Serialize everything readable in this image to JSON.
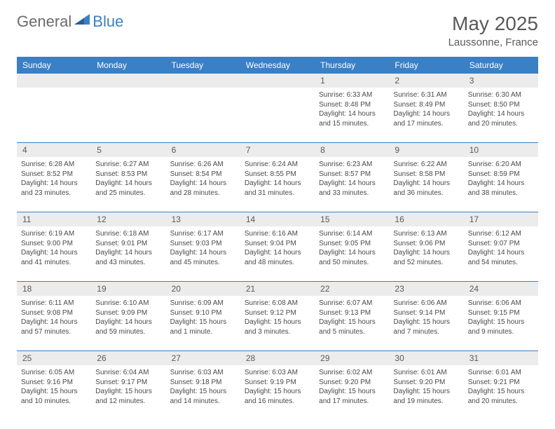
{
  "logo": {
    "text_gray": "General",
    "text_blue": "Blue"
  },
  "title": "May 2025",
  "location": "Laussonne, France",
  "colors": {
    "header_bg": "#3b7fc4",
    "header_text": "#ffffff",
    "daynum_bg": "#ececec",
    "divider": "#3b7fc4",
    "body_text": "#4a4a4a",
    "title_text": "#5a5a5a"
  },
  "day_names": [
    "Sunday",
    "Monday",
    "Tuesday",
    "Wednesday",
    "Thursday",
    "Friday",
    "Saturday"
  ],
  "weeks": [
    [
      {
        "n": "",
        "lines": [
          "",
          "",
          "",
          ""
        ]
      },
      {
        "n": "",
        "lines": [
          "",
          "",
          "",
          ""
        ]
      },
      {
        "n": "",
        "lines": [
          "",
          "",
          "",
          ""
        ]
      },
      {
        "n": "",
        "lines": [
          "",
          "",
          "",
          ""
        ]
      },
      {
        "n": "1",
        "lines": [
          "Sunrise: 6:33 AM",
          "Sunset: 8:48 PM",
          "Daylight: 14 hours",
          "and 15 minutes."
        ]
      },
      {
        "n": "2",
        "lines": [
          "Sunrise: 6:31 AM",
          "Sunset: 8:49 PM",
          "Daylight: 14 hours",
          "and 17 minutes."
        ]
      },
      {
        "n": "3",
        "lines": [
          "Sunrise: 6:30 AM",
          "Sunset: 8:50 PM",
          "Daylight: 14 hours",
          "and 20 minutes."
        ]
      }
    ],
    [
      {
        "n": "4",
        "lines": [
          "Sunrise: 6:28 AM",
          "Sunset: 8:52 PM",
          "Daylight: 14 hours",
          "and 23 minutes."
        ]
      },
      {
        "n": "5",
        "lines": [
          "Sunrise: 6:27 AM",
          "Sunset: 8:53 PM",
          "Daylight: 14 hours",
          "and 25 minutes."
        ]
      },
      {
        "n": "6",
        "lines": [
          "Sunrise: 6:26 AM",
          "Sunset: 8:54 PM",
          "Daylight: 14 hours",
          "and 28 minutes."
        ]
      },
      {
        "n": "7",
        "lines": [
          "Sunrise: 6:24 AM",
          "Sunset: 8:55 PM",
          "Daylight: 14 hours",
          "and 31 minutes."
        ]
      },
      {
        "n": "8",
        "lines": [
          "Sunrise: 6:23 AM",
          "Sunset: 8:57 PM",
          "Daylight: 14 hours",
          "and 33 minutes."
        ]
      },
      {
        "n": "9",
        "lines": [
          "Sunrise: 6:22 AM",
          "Sunset: 8:58 PM",
          "Daylight: 14 hours",
          "and 36 minutes."
        ]
      },
      {
        "n": "10",
        "lines": [
          "Sunrise: 6:20 AM",
          "Sunset: 8:59 PM",
          "Daylight: 14 hours",
          "and 38 minutes."
        ]
      }
    ],
    [
      {
        "n": "11",
        "lines": [
          "Sunrise: 6:19 AM",
          "Sunset: 9:00 PM",
          "Daylight: 14 hours",
          "and 41 minutes."
        ]
      },
      {
        "n": "12",
        "lines": [
          "Sunrise: 6:18 AM",
          "Sunset: 9:01 PM",
          "Daylight: 14 hours",
          "and 43 minutes."
        ]
      },
      {
        "n": "13",
        "lines": [
          "Sunrise: 6:17 AM",
          "Sunset: 9:03 PM",
          "Daylight: 14 hours",
          "and 45 minutes."
        ]
      },
      {
        "n": "14",
        "lines": [
          "Sunrise: 6:16 AM",
          "Sunset: 9:04 PM",
          "Daylight: 14 hours",
          "and 48 minutes."
        ]
      },
      {
        "n": "15",
        "lines": [
          "Sunrise: 6:14 AM",
          "Sunset: 9:05 PM",
          "Daylight: 14 hours",
          "and 50 minutes."
        ]
      },
      {
        "n": "16",
        "lines": [
          "Sunrise: 6:13 AM",
          "Sunset: 9:06 PM",
          "Daylight: 14 hours",
          "and 52 minutes."
        ]
      },
      {
        "n": "17",
        "lines": [
          "Sunrise: 6:12 AM",
          "Sunset: 9:07 PM",
          "Daylight: 14 hours",
          "and 54 minutes."
        ]
      }
    ],
    [
      {
        "n": "18",
        "lines": [
          "Sunrise: 6:11 AM",
          "Sunset: 9:08 PM",
          "Daylight: 14 hours",
          "and 57 minutes."
        ]
      },
      {
        "n": "19",
        "lines": [
          "Sunrise: 6:10 AM",
          "Sunset: 9:09 PM",
          "Daylight: 14 hours",
          "and 59 minutes."
        ]
      },
      {
        "n": "20",
        "lines": [
          "Sunrise: 6:09 AM",
          "Sunset: 9:10 PM",
          "Daylight: 15 hours",
          "and 1 minute."
        ]
      },
      {
        "n": "21",
        "lines": [
          "Sunrise: 6:08 AM",
          "Sunset: 9:12 PM",
          "Daylight: 15 hours",
          "and 3 minutes."
        ]
      },
      {
        "n": "22",
        "lines": [
          "Sunrise: 6:07 AM",
          "Sunset: 9:13 PM",
          "Daylight: 15 hours",
          "and 5 minutes."
        ]
      },
      {
        "n": "23",
        "lines": [
          "Sunrise: 6:06 AM",
          "Sunset: 9:14 PM",
          "Daylight: 15 hours",
          "and 7 minutes."
        ]
      },
      {
        "n": "24",
        "lines": [
          "Sunrise: 6:06 AM",
          "Sunset: 9:15 PM",
          "Daylight: 15 hours",
          "and 9 minutes."
        ]
      }
    ],
    [
      {
        "n": "25",
        "lines": [
          "Sunrise: 6:05 AM",
          "Sunset: 9:16 PM",
          "Daylight: 15 hours",
          "and 10 minutes."
        ]
      },
      {
        "n": "26",
        "lines": [
          "Sunrise: 6:04 AM",
          "Sunset: 9:17 PM",
          "Daylight: 15 hours",
          "and 12 minutes."
        ]
      },
      {
        "n": "27",
        "lines": [
          "Sunrise: 6:03 AM",
          "Sunset: 9:18 PM",
          "Daylight: 15 hours",
          "and 14 minutes."
        ]
      },
      {
        "n": "28",
        "lines": [
          "Sunrise: 6:03 AM",
          "Sunset: 9:19 PM",
          "Daylight: 15 hours",
          "and 16 minutes."
        ]
      },
      {
        "n": "29",
        "lines": [
          "Sunrise: 6:02 AM",
          "Sunset: 9:20 PM",
          "Daylight: 15 hours",
          "and 17 minutes."
        ]
      },
      {
        "n": "30",
        "lines": [
          "Sunrise: 6:01 AM",
          "Sunset: 9:20 PM",
          "Daylight: 15 hours",
          "and 19 minutes."
        ]
      },
      {
        "n": "31",
        "lines": [
          "Sunrise: 6:01 AM",
          "Sunset: 9:21 PM",
          "Daylight: 15 hours",
          "and 20 minutes."
        ]
      }
    ]
  ]
}
